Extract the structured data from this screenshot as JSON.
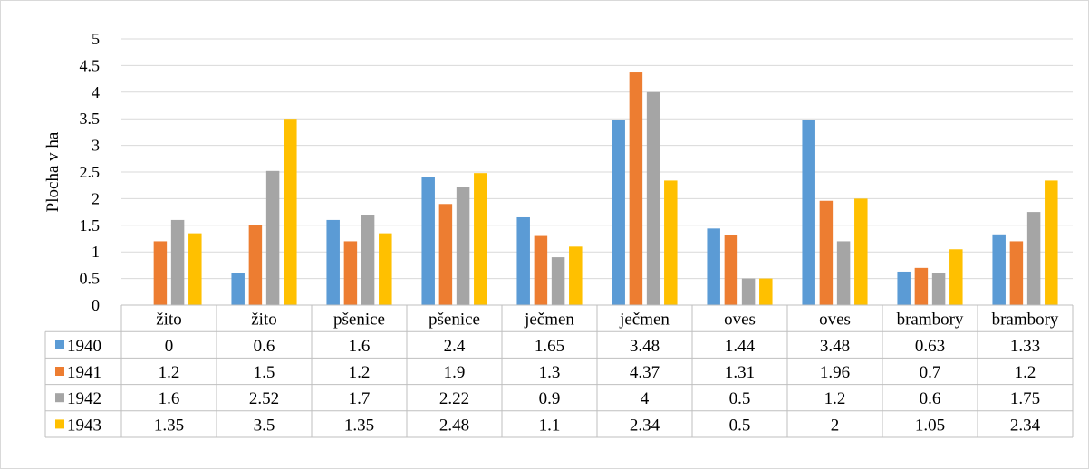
{
  "chart_data": {
    "type": "bar",
    "ylabel": "Plocha v ha",
    "ylim": [
      0,
      5
    ],
    "yticks": [
      "0",
      "0.5",
      "1",
      "1.5",
      "2",
      "2.5",
      "3",
      "3.5",
      "4",
      "4.5",
      "5"
    ],
    "grid": true,
    "legend": "data-table-left",
    "categories": [
      "žito",
      "žito",
      "pšenice",
      "pšenice",
      "ječmen",
      "ječmen",
      "oves",
      "oves",
      "brambory",
      "brambory"
    ],
    "series": [
      {
        "name": "1940",
        "color": "#5b9bd5",
        "values": [
          0,
          0.6,
          1.6,
          2.4,
          1.65,
          3.48,
          1.44,
          3.48,
          0.63,
          1.33
        ],
        "labels": [
          "0",
          "0.6",
          "1.6",
          "2.4",
          "1.65",
          "3.48",
          "1.44",
          "3.48",
          "0.63",
          "1.33"
        ]
      },
      {
        "name": "1941",
        "color": "#ed7d31",
        "values": [
          1.2,
          1.5,
          1.2,
          1.9,
          1.3,
          4.37,
          1.31,
          1.96,
          0.7,
          1.2
        ],
        "labels": [
          "1.2",
          "1.5",
          "1.2",
          "1.9",
          "1.3",
          "4.37",
          "1.31",
          "1.96",
          "0.7",
          "1.2"
        ]
      },
      {
        "name": "1942",
        "color": "#a5a5a5",
        "values": [
          1.6,
          2.52,
          1.7,
          2.22,
          0.9,
          4,
          0.5,
          1.2,
          0.6,
          1.75
        ],
        "labels": [
          "1.6",
          "2.52",
          "1.7",
          "2.22",
          "0.9",
          "4",
          "0.5",
          "1.2",
          "0.6",
          "1.75"
        ]
      },
      {
        "name": "1943",
        "color": "#ffc000",
        "values": [
          1.35,
          3.5,
          1.35,
          2.48,
          1.1,
          2.34,
          0.5,
          2,
          1.05,
          2.34
        ],
        "labels": [
          "1.35",
          "3.5",
          "1.35",
          "2.48",
          "1.1",
          "2.34",
          "0.5",
          "2",
          "1.05",
          "2.34"
        ]
      }
    ]
  }
}
